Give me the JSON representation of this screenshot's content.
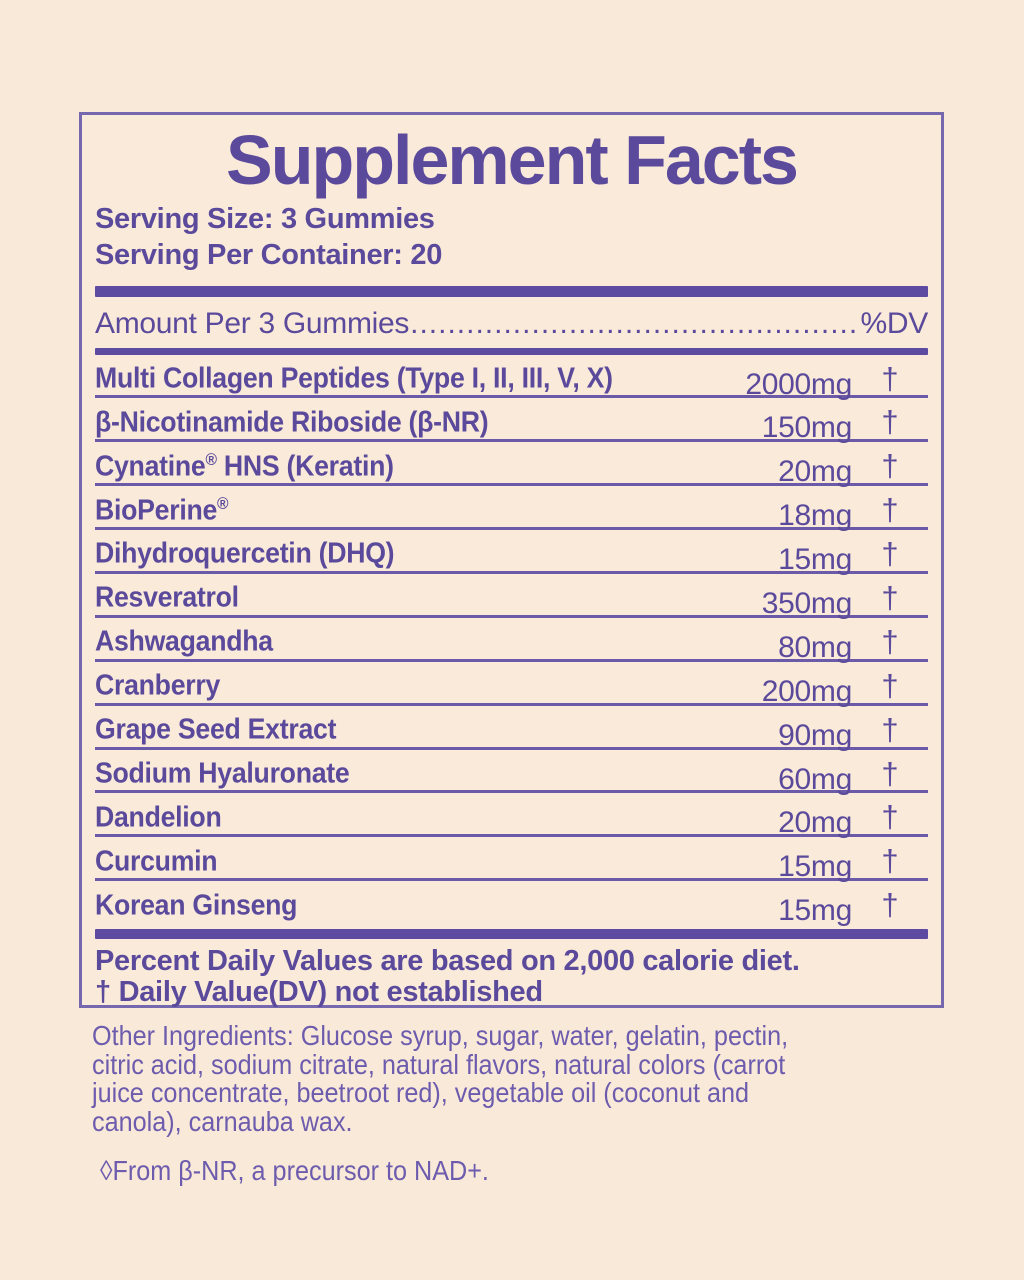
{
  "colors": {
    "background": "#f9e9d8",
    "text_purple": "#5b4a9c",
    "bar_purple": "#5c4ba1",
    "border_purple": "#7668ae",
    "light_purple": "#6d5cae"
  },
  "panel": {
    "title": "Supplement Facts",
    "serving_size": "Serving Size: 3 Gummies",
    "servings_per_container": "Serving Per Container: 20",
    "amount_header": {
      "label": "Amount Per 3 Gummies",
      "leader": "......................................................................",
      "dv": "%DV"
    },
    "rows": [
      {
        "pre": "Multi Collagen Peptides (Type I, II, III, V, X)",
        "sup": "",
        "post": "",
        "amount": "2000mg",
        "dv": "†"
      },
      {
        "pre": "β-Nicotinamide Riboside (β-NR)",
        "sup": "",
        "post": "",
        "amount": "150mg",
        "dv": "†"
      },
      {
        "pre": "Cynatine",
        "sup": "®",
        "post": " HNS (Keratin)",
        "amount": "20mg",
        "dv": "†"
      },
      {
        "pre": "BioPerine",
        "sup": "®",
        "post": "",
        "amount": "18mg",
        "dv": "†"
      },
      {
        "pre": "Dihydroquercetin (DHQ)",
        "sup": "",
        "post": "",
        "amount": "15mg",
        "dv": "†"
      },
      {
        "pre": "Resveratrol",
        "sup": "",
        "post": "",
        "amount": "350mg",
        "dv": "†"
      },
      {
        "pre": "Ashwagandha",
        "sup": "",
        "post": "",
        "amount": "80mg",
        "dv": "†"
      },
      {
        "pre": "Cranberry",
        "sup": "",
        "post": "",
        "amount": "200mg",
        "dv": "†"
      },
      {
        "pre": "Grape Seed Extract",
        "sup": "",
        "post": "",
        "amount": "90mg",
        "dv": "†"
      },
      {
        "pre": "Sodium Hyaluronate",
        "sup": "",
        "post": "",
        "amount": "60mg",
        "dv": "†"
      },
      {
        "pre": "Dandelion",
        "sup": "",
        "post": "",
        "amount": "20mg",
        "dv": "†"
      },
      {
        "pre": "Curcumin",
        "sup": "",
        "post": "",
        "amount": "15mg",
        "dv": "†"
      },
      {
        "pre": "Korean Ginseng",
        "sup": "",
        "post": "",
        "amount": "15mg",
        "dv": "†"
      }
    ],
    "footnotes": [
      "Percent Daily Values are based on 2,000 calorie diet.",
      "† Daily Value(DV) not established"
    ]
  },
  "other_ingredients": {
    "lines": [
      "Other Ingredients: Glucose syrup, sugar, water, gelatin, pectin,",
      "citric acid, sodium citrate, natural flavors, natural colors (carrot",
      "juice concentrate, beetroot red), vegetable oil (coconut and",
      "canola), carnauba wax."
    ]
  },
  "precursor_note": "◊From β-NR, a precursor to NAD+."
}
